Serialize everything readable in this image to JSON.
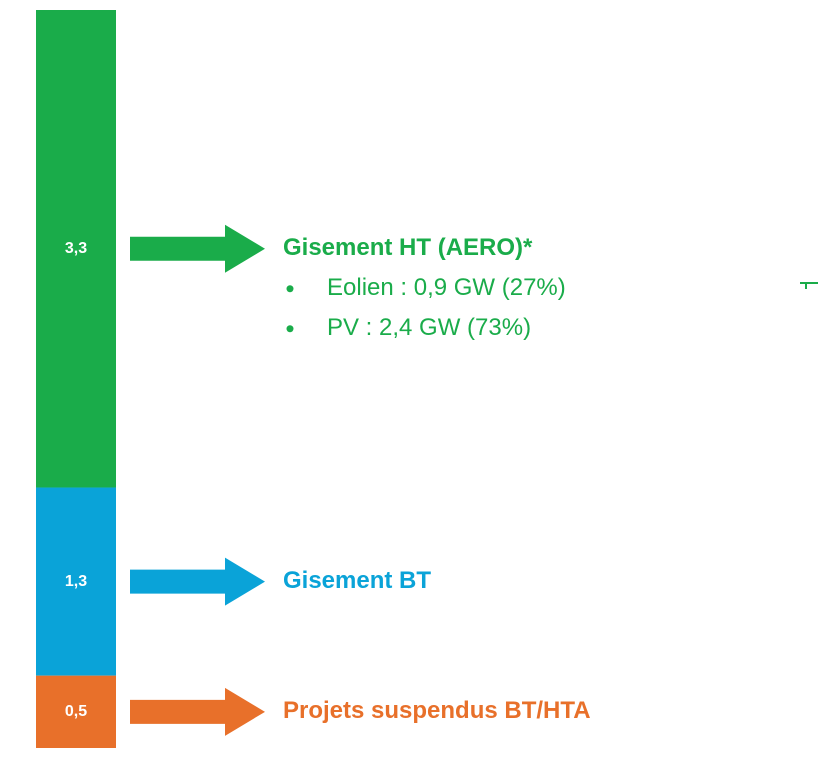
{
  "chart_data": {
    "type": "bar",
    "stacked": true,
    "series": [
      {
        "name": "Gisement HT (AERO)*",
        "color": "#1aac4a",
        "values": [
          3.3
        ],
        "value_labels": [
          "3,3"
        ],
        "details": [
          "Eolien : 0,9 GW (27%)",
          "PV : 2,4 GW (73%)"
        ]
      },
      {
        "name": "Gisement BT",
        "color": "#0aa3d8",
        "values": [
          1.3
        ],
        "value_labels": [
          "1,3"
        ]
      },
      {
        "name": "Projets suspendus BT/HTA",
        "color": "#e8702a",
        "values": [
          0.5
        ],
        "value_labels": [
          "0,5"
        ]
      }
    ]
  }
}
